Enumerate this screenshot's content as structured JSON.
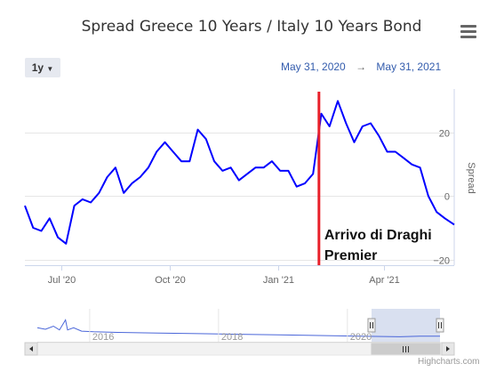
{
  "header": {
    "title": "Spread Greece 10 Years / Italy 10 Years Bond"
  },
  "controls": {
    "range_button": "1y",
    "date_from": "May 31, 2020",
    "arrow": "→",
    "date_to": "May 31, 2021"
  },
  "credits": "Highcharts.com",
  "colors": {
    "line": "#0000ff",
    "marker_line": "#e8202a",
    "navigator_mask": "#ccd6eb",
    "navigator_line": "#4a66d9"
  },
  "chart_data": {
    "type": "line",
    "ylabel": "Spread",
    "x_ticks": [
      {
        "date": "2020-07-01",
        "label": "Jul '20"
      },
      {
        "date": "2020-10-01",
        "label": "Oct '20"
      },
      {
        "date": "2021-01-01",
        "label": "Jan '21"
      },
      {
        "date": "2021-04-01",
        "label": "Apr '21"
      }
    ],
    "y_ticks": [
      -20,
      0,
      20
    ],
    "ylim": [
      -21.8,
      33.8
    ],
    "xlim": [
      "2020-05-31",
      "2021-05-31"
    ],
    "grid": {
      "horizontal": true,
      "vertical": false
    },
    "series": [
      {
        "points": [
          [
            "2020-05-31",
            -3
          ],
          [
            "2020-06-07",
            -10
          ],
          [
            "2020-06-14",
            -11
          ],
          [
            "2020-06-21",
            -7
          ],
          [
            "2020-06-28",
            -13
          ],
          [
            "2020-07-05",
            -15
          ],
          [
            "2020-07-12",
            -3
          ],
          [
            "2020-07-19",
            -1
          ],
          [
            "2020-07-26",
            -2
          ],
          [
            "2020-08-02",
            1
          ],
          [
            "2020-08-09",
            6
          ],
          [
            "2020-08-16",
            9
          ],
          [
            "2020-08-23",
            1
          ],
          [
            "2020-08-30",
            4
          ],
          [
            "2020-09-06",
            6
          ],
          [
            "2020-09-13",
            9
          ],
          [
            "2020-09-20",
            14
          ],
          [
            "2020-09-27",
            17
          ],
          [
            "2020-10-04",
            14
          ],
          [
            "2020-10-11",
            11
          ],
          [
            "2020-10-18",
            11
          ],
          [
            "2020-10-25",
            21
          ],
          [
            "2020-11-01",
            18
          ],
          [
            "2020-11-08",
            11
          ],
          [
            "2020-11-15",
            8
          ],
          [
            "2020-11-22",
            9
          ],
          [
            "2020-11-29",
            5
          ],
          [
            "2020-12-06",
            7
          ],
          [
            "2020-12-13",
            9
          ],
          [
            "2020-12-20",
            9
          ],
          [
            "2020-12-27",
            11
          ],
          [
            "2021-01-03",
            8
          ],
          [
            "2021-01-10",
            8
          ],
          [
            "2021-01-17",
            3
          ],
          [
            "2021-01-24",
            4
          ],
          [
            "2021-01-31",
            7
          ],
          [
            "2021-02-07",
            26
          ],
          [
            "2021-02-14",
            22
          ],
          [
            "2021-02-21",
            30
          ],
          [
            "2021-02-28",
            23
          ],
          [
            "2021-03-07",
            17
          ],
          [
            "2021-03-14",
            22
          ],
          [
            "2021-03-21",
            23
          ],
          [
            "2021-03-28",
            19
          ],
          [
            "2021-04-04",
            14
          ],
          [
            "2021-04-11",
            14
          ],
          [
            "2021-04-18",
            12
          ],
          [
            "2021-04-25",
            10
          ],
          [
            "2021-05-02",
            9
          ],
          [
            "2021-05-09",
            0
          ],
          [
            "2021-05-16",
            -5
          ],
          [
            "2021-05-23",
            -7
          ],
          [
            "2021-05-31",
            -9
          ]
        ]
      }
    ],
    "annotations": [
      {
        "date": "2021-02-05",
        "text_lines": [
          "Arrivo di Draghi",
          "Premier"
        ]
      }
    ],
    "navigator": {
      "labels": [
        "2016",
        "2018",
        "2020"
      ],
      "overview_points": [
        [
          0,
          0.55
        ],
        [
          0.02,
          0.6
        ],
        [
          0.04,
          0.5
        ],
        [
          0.055,
          0.62
        ],
        [
          0.07,
          0.3
        ],
        [
          0.075,
          0.62
        ],
        [
          0.09,
          0.55
        ],
        [
          0.11,
          0.66
        ],
        [
          0.14,
          0.68
        ],
        [
          0.2,
          0.7
        ],
        [
          0.3,
          0.72
        ],
        [
          0.4,
          0.74
        ],
        [
          0.5,
          0.76
        ],
        [
          0.6,
          0.78
        ],
        [
          0.7,
          0.8
        ],
        [
          0.8,
          0.82
        ],
        [
          0.9,
          0.84
        ],
        [
          0.95,
          0.82
        ],
        [
          1,
          0.82
        ]
      ],
      "selected_range": [
        0.83,
        1.0
      ]
    }
  }
}
